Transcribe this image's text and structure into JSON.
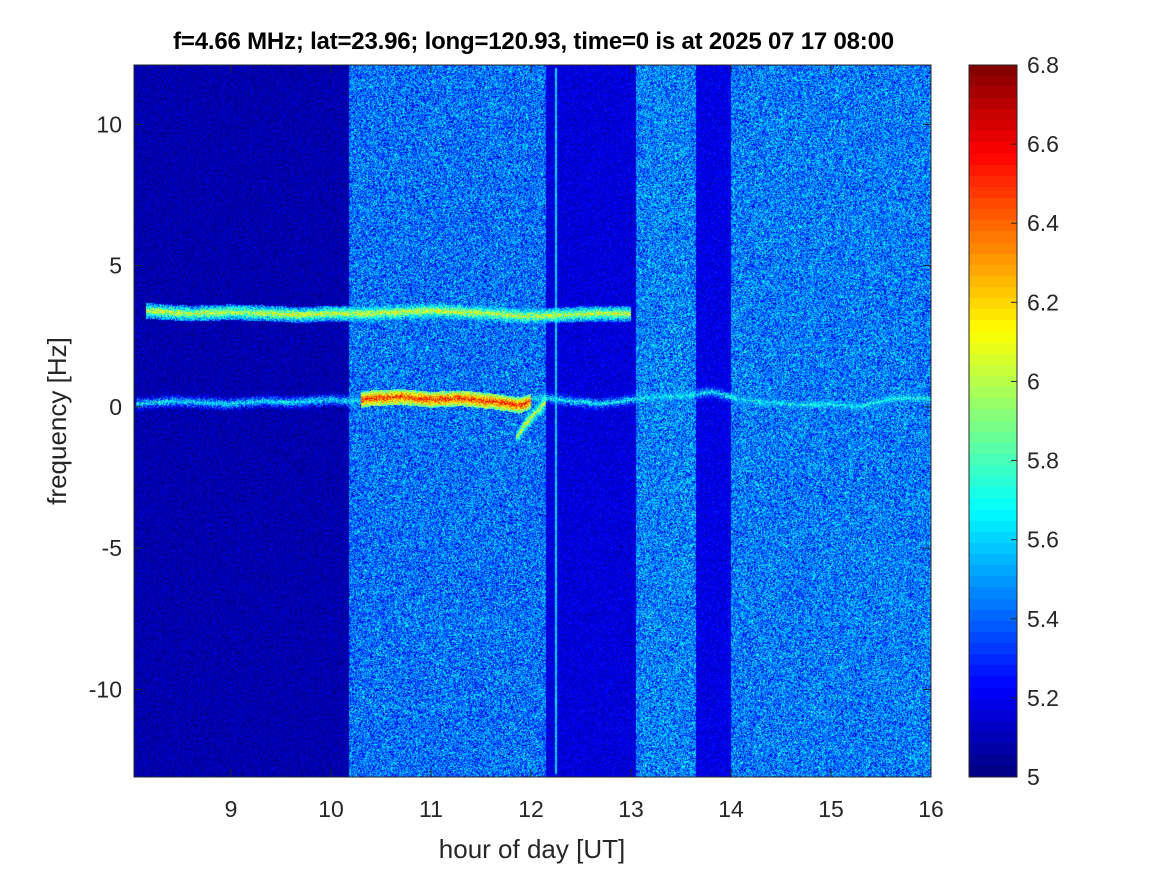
{
  "chart_data": {
    "type": "heatmap",
    "title": "f=4.66 MHz;  lat=23.96; long=120.93, time=0 is at 2025 07 17 08:00",
    "xlabel": "hour of day [UT]",
    "ylabel": "frequency [Hz]",
    "xlim": [
      8.03,
      16.0
    ],
    "ylim": [
      -13.1,
      12.1
    ],
    "x_ticks": [
      9,
      10,
      11,
      12,
      13,
      14,
      15,
      16
    ],
    "x_tick_labels": [
      "9",
      "10",
      "11",
      "12",
      "13",
      "14",
      "15",
      "16"
    ],
    "y_ticks": [
      10,
      5,
      0,
      -5,
      -10
    ],
    "y_tick_labels": [
      "10",
      "5",
      "0",
      "-5",
      "-10"
    ],
    "colorbar": {
      "limits": [
        5.0,
        6.8
      ],
      "ticks": [
        6.8,
        6.6,
        6.4,
        6.2,
        6.0,
        5.8,
        5.6,
        5.4,
        5.2,
        5.0
      ],
      "tick_labels": [
        "6.8",
        "6.6",
        "6.4",
        "6.2",
        "6",
        "5.8",
        "5.6",
        "5.4",
        "5.2",
        "5"
      ],
      "colormap": "jet"
    },
    "background_bands": [
      {
        "x_start": 8.03,
        "x_end": 10.18,
        "level": 5.08
      },
      {
        "x_start": 10.18,
        "x_end": 12.15,
        "level": 5.42
      },
      {
        "x_start": 12.15,
        "x_end": 13.05,
        "level": 5.16
      },
      {
        "x_start": 13.05,
        "x_end": 13.65,
        "level": 5.45
      },
      {
        "x_start": 13.65,
        "x_end": 14.0,
        "level": 5.18
      },
      {
        "x_start": 14.0,
        "x_end": 16.0,
        "level": 5.44
      }
    ],
    "traces": [
      {
        "points": [
          [
            8.05,
            0.1
          ],
          [
            8.4,
            0.2
          ],
          [
            8.7,
            0.15
          ],
          [
            9.0,
            0.1
          ],
          [
            9.3,
            0.2
          ],
          [
            9.6,
            0.15
          ],
          [
            9.8,
            0.2
          ],
          [
            10.0,
            0.25
          ],
          [
            10.2,
            0.2
          ],
          [
            10.4,
            0.3
          ],
          [
            10.7,
            0.35
          ],
          [
            11.0,
            0.25
          ],
          [
            11.3,
            0.3
          ],
          [
            11.6,
            0.2
          ],
          [
            11.9,
            0.05
          ],
          [
            12.1,
            0.35
          ],
          [
            12.4,
            0.2
          ],
          [
            12.7,
            0.1
          ],
          [
            13.0,
            0.25
          ],
          [
            13.3,
            0.35
          ],
          [
            13.6,
            0.4
          ],
          [
            13.8,
            0.55
          ],
          [
            14.1,
            0.25
          ],
          [
            14.4,
            0.15
          ],
          [
            14.7,
            0.05
          ],
          [
            15.0,
            0.1
          ],
          [
            15.3,
            0.0
          ],
          [
            15.6,
            0.3
          ],
          [
            16.0,
            0.3
          ]
        ],
        "peak_level": 6.75
      },
      {
        "points": [
          [
            8.15,
            3.4
          ],
          [
            8.6,
            3.3
          ],
          [
            9.0,
            3.35
          ],
          [
            9.4,
            3.3
          ],
          [
            9.7,
            3.25
          ],
          [
            10.0,
            3.3
          ],
          [
            10.4,
            3.3
          ],
          [
            10.7,
            3.35
          ],
          [
            11.0,
            3.4
          ],
          [
            11.3,
            3.35
          ],
          [
            11.6,
            3.3
          ],
          [
            12.0,
            3.2
          ],
          [
            12.3,
            3.25
          ],
          [
            12.7,
            3.3
          ],
          [
            13.0,
            3.3
          ]
        ],
        "peak_level": 6.3
      },
      {
        "points": [
          [
            11.85,
            -1.1
          ],
          [
            11.95,
            -0.6
          ],
          [
            12.05,
            -0.2
          ],
          [
            12.15,
            0.2
          ]
        ],
        "peak_level": 6.3
      },
      {
        "points": [
          [
            12.25,
            12.0
          ],
          [
            12.25,
            -13.0
          ]
        ],
        "peak_level": 5.7
      }
    ]
  }
}
